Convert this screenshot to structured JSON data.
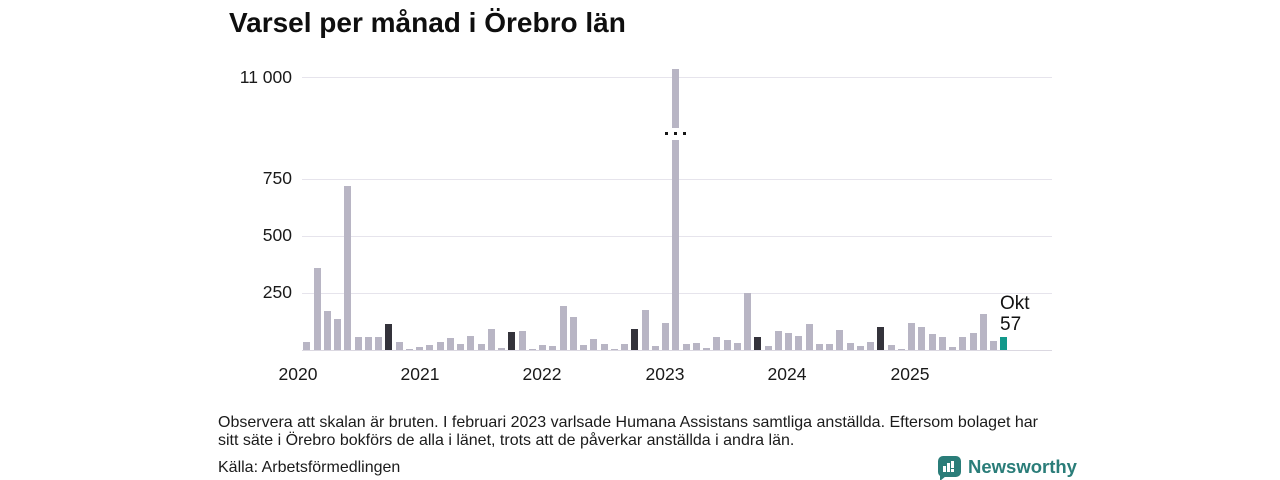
{
  "title": "Varsel per månad i Örebro län",
  "annotation": {
    "line1": "Okt",
    "line2": "57"
  },
  "note": {
    "line1": "Observera att skalan är bruten. I februari 2023 varlsade Humana Assistans samtliga anställda. Eftersom bolaget har",
    "line2": "sitt säte i Örebro bokförs de alla i länet, trots att de påverkar anställda i andra län."
  },
  "source_label": "Källa: Arbetsförmedlingen",
  "brand": {
    "name": "Newsworthy",
    "color": "#2a7d79"
  },
  "colors": {
    "bar": "#b8b5c4",
    "bar_october": "#34333b",
    "bar_current": "#13998b",
    "gridline": "#e6e4ec",
    "text": "#1a1a1a"
  },
  "chart_data": {
    "type": "bar",
    "title": "Varsel per månad i Örebro län",
    "ylabel": "",
    "xlabel": "",
    "broken_axis": true,
    "broken_axis_note": "scale break between 750 and 11 000",
    "y_ticks": [
      250,
      500,
      750,
      11000
    ],
    "y_tick_labels": [
      "250",
      "500",
      "750",
      "11 000"
    ],
    "x_tick_labels": [
      "2020",
      "2021",
      "2022",
      "2023",
      "2024",
      "2025"
    ],
    "legend": "dark bars = October of each year, teal bar = current month (Okt 2025)",
    "annotation_target": {
      "month": "Okt 2025",
      "value": 57
    },
    "months": [
      {
        "label": "Jan 2020",
        "value": 0,
        "style": "normal"
      },
      {
        "label": "Feb 2020",
        "value": 35,
        "style": "normal"
      },
      {
        "label": "Mar 2020",
        "value": 360,
        "style": "normal"
      },
      {
        "label": "Apr 2020",
        "value": 171,
        "style": "normal"
      },
      {
        "label": "Maj 2020",
        "value": 136,
        "style": "normal"
      },
      {
        "label": "Jun 2020",
        "value": 719,
        "style": "normal"
      },
      {
        "label": "Jul 2020",
        "value": 57,
        "style": "normal"
      },
      {
        "label": "Aug 2020",
        "value": 57,
        "style": "normal"
      },
      {
        "label": "Sep 2020",
        "value": 57,
        "style": "normal"
      },
      {
        "label": "Okt 2020",
        "value": 115,
        "style": "october"
      },
      {
        "label": "Nov 2020",
        "value": 33,
        "style": "normal"
      },
      {
        "label": "Dec 2020",
        "value": 5,
        "style": "normal"
      },
      {
        "label": "Jan 2021",
        "value": 13,
        "style": "normal"
      },
      {
        "label": "Feb 2021",
        "value": 24,
        "style": "normal"
      },
      {
        "label": "Mar 2021",
        "value": 33,
        "style": "normal"
      },
      {
        "label": "Apr 2021",
        "value": 52,
        "style": "normal"
      },
      {
        "label": "Maj 2021",
        "value": 28,
        "style": "normal"
      },
      {
        "label": "Jun 2021",
        "value": 63,
        "style": "normal"
      },
      {
        "label": "Jul 2021",
        "value": 28,
        "style": "normal"
      },
      {
        "label": "Aug 2021",
        "value": 91,
        "style": "normal"
      },
      {
        "label": "Sep 2021",
        "value": 10,
        "style": "normal"
      },
      {
        "label": "Okt 2021",
        "value": 81,
        "style": "october"
      },
      {
        "label": "Nov 2021",
        "value": 84,
        "style": "normal"
      },
      {
        "label": "Dec 2021",
        "value": 3,
        "style": "normal"
      },
      {
        "label": "Jan 2022",
        "value": 24,
        "style": "normal"
      },
      {
        "label": "Feb 2022",
        "value": 19,
        "style": "normal"
      },
      {
        "label": "Mar 2022",
        "value": 193,
        "style": "normal"
      },
      {
        "label": "Apr 2022",
        "value": 146,
        "style": "normal"
      },
      {
        "label": "Maj 2022",
        "value": 24,
        "style": "normal"
      },
      {
        "label": "Jun 2022",
        "value": 47,
        "style": "normal"
      },
      {
        "label": "Jul 2022",
        "value": 28,
        "style": "normal"
      },
      {
        "label": "Aug 2022",
        "value": 5,
        "style": "normal"
      },
      {
        "label": "Sep 2022",
        "value": 28,
        "style": "normal"
      },
      {
        "label": "Okt 2022",
        "value": 92,
        "style": "october"
      },
      {
        "label": "Nov 2022",
        "value": 176,
        "style": "normal"
      },
      {
        "label": "Dec 2022",
        "value": 19,
        "style": "normal"
      },
      {
        "label": "Jan 2023",
        "value": 120,
        "style": "normal"
      },
      {
        "label": "Feb 2023",
        "value": 11200,
        "style": "normal",
        "broken": true
      },
      {
        "label": "Mar 2023",
        "value": 26,
        "style": "normal"
      },
      {
        "label": "Apr 2023",
        "value": 29,
        "style": "normal"
      },
      {
        "label": "Maj 2023",
        "value": 9,
        "style": "normal"
      },
      {
        "label": "Jun 2023",
        "value": 57,
        "style": "normal"
      },
      {
        "label": "Jul 2023",
        "value": 44,
        "style": "normal"
      },
      {
        "label": "Aug 2023",
        "value": 29,
        "style": "normal"
      },
      {
        "label": "Sep 2023",
        "value": 250,
        "style": "normal"
      },
      {
        "label": "Okt 2023",
        "value": 55,
        "style": "october"
      },
      {
        "label": "Nov 2023",
        "value": 19,
        "style": "normal"
      },
      {
        "label": "Dec 2023",
        "value": 85,
        "style": "normal"
      },
      {
        "label": "Jan 2024",
        "value": 75,
        "style": "normal"
      },
      {
        "label": "Feb 2024",
        "value": 63,
        "style": "normal"
      },
      {
        "label": "Mar 2024",
        "value": 114,
        "style": "normal"
      },
      {
        "label": "Apr 2024",
        "value": 28,
        "style": "normal"
      },
      {
        "label": "Maj 2024",
        "value": 28,
        "style": "normal"
      },
      {
        "label": "Jun 2024",
        "value": 86,
        "style": "normal"
      },
      {
        "label": "Jul 2024",
        "value": 31,
        "style": "normal"
      },
      {
        "label": "Aug 2024",
        "value": 16,
        "style": "normal"
      },
      {
        "label": "Sep 2024",
        "value": 37,
        "style": "normal"
      },
      {
        "label": "Okt 2024",
        "value": 102,
        "style": "october"
      },
      {
        "label": "Nov 2024",
        "value": 23,
        "style": "normal"
      },
      {
        "label": "Dec 2024",
        "value": 5,
        "style": "normal"
      },
      {
        "label": "Jan 2025",
        "value": 118,
        "style": "normal"
      },
      {
        "label": "Feb 2025",
        "value": 99,
        "style": "normal"
      },
      {
        "label": "Mar 2025",
        "value": 72,
        "style": "normal"
      },
      {
        "label": "Apr 2025",
        "value": 57,
        "style": "normal"
      },
      {
        "label": "Maj 2025",
        "value": 12,
        "style": "normal"
      },
      {
        "label": "Jun 2025",
        "value": 57,
        "style": "normal"
      },
      {
        "label": "Jul 2025",
        "value": 75,
        "style": "normal"
      },
      {
        "label": "Aug 2025",
        "value": 159,
        "style": "normal"
      },
      {
        "label": "Sep 2025",
        "value": 40,
        "style": "normal"
      },
      {
        "label": "Okt 2025",
        "value": 57,
        "style": "current"
      }
    ]
  }
}
